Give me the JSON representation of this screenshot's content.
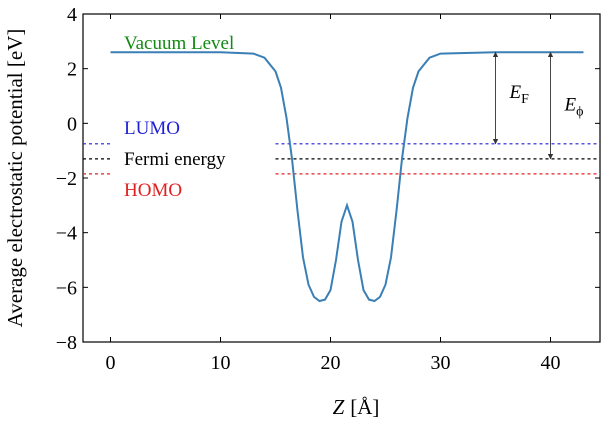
{
  "chart_data": {
    "type": "line",
    "title": "",
    "xlabel_var": "Z",
    "xlabel_unit": "[Å]",
    "ylabel": "Average electrostatic potential [eV]",
    "xlim": [
      -2.5,
      44.5
    ],
    "ylim": [
      -8,
      4
    ],
    "xticks": [
      0,
      10,
      20,
      30,
      40
    ],
    "yticks": [
      -8,
      -6,
      -4,
      -2,
      0,
      2,
      4
    ],
    "grid": false,
    "line_color": "#3a7fb5",
    "series": [
      {
        "x": [
          0,
          5,
          10,
          13,
          14,
          15,
          15.5,
          16,
          16.5,
          17,
          17.5,
          18,
          18.5,
          19,
          19.5,
          20,
          20.5,
          21,
          21.5,
          22,
          22.5,
          23,
          23.5,
          24,
          24.5,
          25,
          25.5,
          26,
          26.5,
          27,
          27.5,
          28,
          29,
          30,
          35,
          40,
          43
        ],
        "y": [
          2.6,
          2.6,
          2.6,
          2.55,
          2.4,
          1.9,
          1.3,
          0.2,
          -1.3,
          -3.2,
          -4.9,
          -5.9,
          -6.35,
          -6.5,
          -6.45,
          -6.1,
          -5.0,
          -3.6,
          -3.0,
          -3.6,
          -5.0,
          -6.1,
          -6.45,
          -6.5,
          -6.35,
          -5.9,
          -4.9,
          -3.2,
          -1.3,
          0.2,
          1.3,
          1.9,
          2.4,
          2.55,
          2.6,
          2.6,
          2.6
        ]
      }
    ],
    "levels": [
      {
        "name": "LUMO",
        "y": -0.75,
        "color": "#1f1fd6"
      },
      {
        "name": "Fermi energy",
        "y": -1.3,
        "color": "#000000"
      },
      {
        "name": "HOMO",
        "y": -1.85,
        "color": "#e02020"
      }
    ],
    "vacuum_label": "Vacuum Level",
    "vacuum_label_color": "#138a13",
    "level_label_colors": {
      "LUMO": "#1f1fd6",
      "Fermi energy": "#000000",
      "HOMO": "#e02020"
    },
    "arrows": [
      {
        "x": 35,
        "from": -0.75,
        "to": 2.6,
        "label_main": "E",
        "label_sub": "F"
      },
      {
        "x": 40,
        "from": -1.3,
        "to": 2.6,
        "label_main": "E",
        "label_sub": "ϕ"
      }
    ]
  }
}
